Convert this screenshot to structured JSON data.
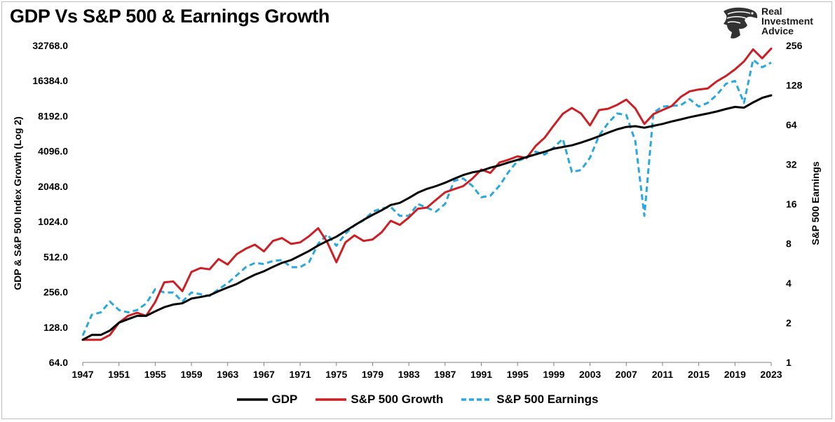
{
  "title": "GDP Vs S&P 500 & Earnings Growth",
  "brand": {
    "line1": "Real",
    "line2": "Investment",
    "line3": "Advice"
  },
  "colors": {
    "gdp": "#000000",
    "sp500_growth": "#cc1f24",
    "sp500_earnings": "#29a8df"
  },
  "chart_data": {
    "type": "line",
    "ylabel_left": "GDP & S&P 500 Index Growth (Log 2)",
    "ylabel_right": "S&P 500 Earnings",
    "y_left_scale": "log2",
    "y_right_scale": "log2",
    "ylim_left": [
      64,
      32768
    ],
    "ylim_right": [
      1,
      256
    ],
    "y_left_ticks": [
      "64.0",
      "128.0",
      "256.0",
      "512.0",
      "1024.0",
      "2048.0",
      "4096.0",
      "8192.0",
      "16384.0",
      "32768.0"
    ],
    "y_right_ticks": [
      "1",
      "2",
      "4",
      "8",
      "16",
      "32",
      "64",
      "128",
      "256"
    ],
    "x_ticks": [
      "1947",
      "1951",
      "1955",
      "1959",
      "1963",
      "1967",
      "1971",
      "1975",
      "1979",
      "1983",
      "1987",
      "1991",
      "1995",
      "1999",
      "2003",
      "2007",
      "2011",
      "2015",
      "2019",
      "2023"
    ],
    "xlim": [
      1947,
      2023
    ],
    "grid": false,
    "legend": "bottom",
    "x": [
      1947,
      1948,
      1949,
      1950,
      1951,
      1952,
      1953,
      1954,
      1955,
      1956,
      1957,
      1958,
      1959,
      1960,
      1961,
      1962,
      1963,
      1964,
      1965,
      1966,
      1967,
      1968,
      1969,
      1970,
      1971,
      1972,
      1973,
      1974,
      1975,
      1976,
      1977,
      1978,
      1979,
      1980,
      1981,
      1982,
      1983,
      1984,
      1985,
      1986,
      1987,
      1988,
      1989,
      1990,
      1991,
      1992,
      1993,
      1994,
      1995,
      1996,
      1997,
      1998,
      1999,
      2000,
      2001,
      2002,
      2003,
      2004,
      2005,
      2006,
      2007,
      2008,
      2009,
      2010,
      2011,
      2012,
      2013,
      2014,
      2015,
      2016,
      2017,
      2018,
      2019,
      2020,
      2021,
      2022,
      2023
    ],
    "series": [
      {
        "name": "GDP",
        "axis": "left",
        "values": [
          100,
          110,
          110,
          120,
          140,
          150,
          160,
          160,
          175,
          190,
          200,
          205,
          225,
          232,
          240,
          260,
          280,
          300,
          330,
          360,
          385,
          420,
          455,
          480,
          525,
          575,
          640,
          700,
          760,
          850,
          950,
          1060,
          1170,
          1280,
          1420,
          1480,
          1630,
          1810,
          1950,
          2060,
          2200,
          2380,
          2560,
          2700,
          2780,
          2960,
          3100,
          3280,
          3450,
          3650,
          3850,
          4050,
          4300,
          4450,
          4600,
          4850,
          5150,
          5500,
          5900,
          6300,
          6600,
          6700,
          6500,
          6750,
          7000,
          7350,
          7650,
          8000,
          8300,
          8600,
          8950,
          9400,
          9800,
          9650,
          10700,
          11700,
          12300
        ]
      },
      {
        "name": "S&P 500 Growth",
        "axis": "left",
        "values": [
          100,
          100,
          100,
          110,
          140,
          160,
          170,
          160,
          210,
          310,
          315,
          260,
          380,
          410,
          400,
          490,
          440,
          540,
          600,
          650,
          570,
          700,
          740,
          660,
          680,
          770,
          900,
          680,
          460,
          680,
          780,
          700,
          720,
          830,
          1040,
          960,
          1110,
          1320,
          1350,
          1570,
          1820,
          1940,
          2060,
          2380,
          2850,
          2670,
          3280,
          3460,
          3700,
          3580,
          4550,
          5350,
          6800,
          8550,
          9600,
          8600,
          6800,
          9200,
          9450,
          10200,
          11300,
          9500,
          7000,
          8500,
          9200,
          9950,
          11900,
          13300,
          13800,
          14100,
          16200,
          18000,
          20500,
          24000,
          30400,
          25500,
          30900
        ]
      },
      {
        "name": "S&P 500 Earnings",
        "axis": "right",
        "values": [
          1.6,
          2.3,
          2.4,
          2.9,
          2.5,
          2.4,
          2.5,
          2.8,
          3.6,
          3.4,
          3.4,
          2.9,
          3.4,
          3.3,
          3.2,
          3.6,
          4.0,
          4.6,
          5.3,
          5.7,
          5.6,
          5.9,
          6.0,
          5.3,
          5.3,
          5.8,
          8.0,
          9.4,
          7.7,
          9.5,
          11,
          12,
          14,
          14.8,
          15.2,
          13,
          13,
          16,
          15,
          14,
          16,
          24,
          25,
          22,
          18,
          18.5,
          22,
          28,
          34,
          36,
          40,
          38,
          43,
          50,
          28,
          29,
          36,
          53,
          66,
          78,
          76,
          48,
          13,
          79,
          88,
          89,
          90,
          100,
          88,
          94,
          108,
          131,
          138,
          94,
          200,
          175,
          190
        ]
      }
    ]
  }
}
